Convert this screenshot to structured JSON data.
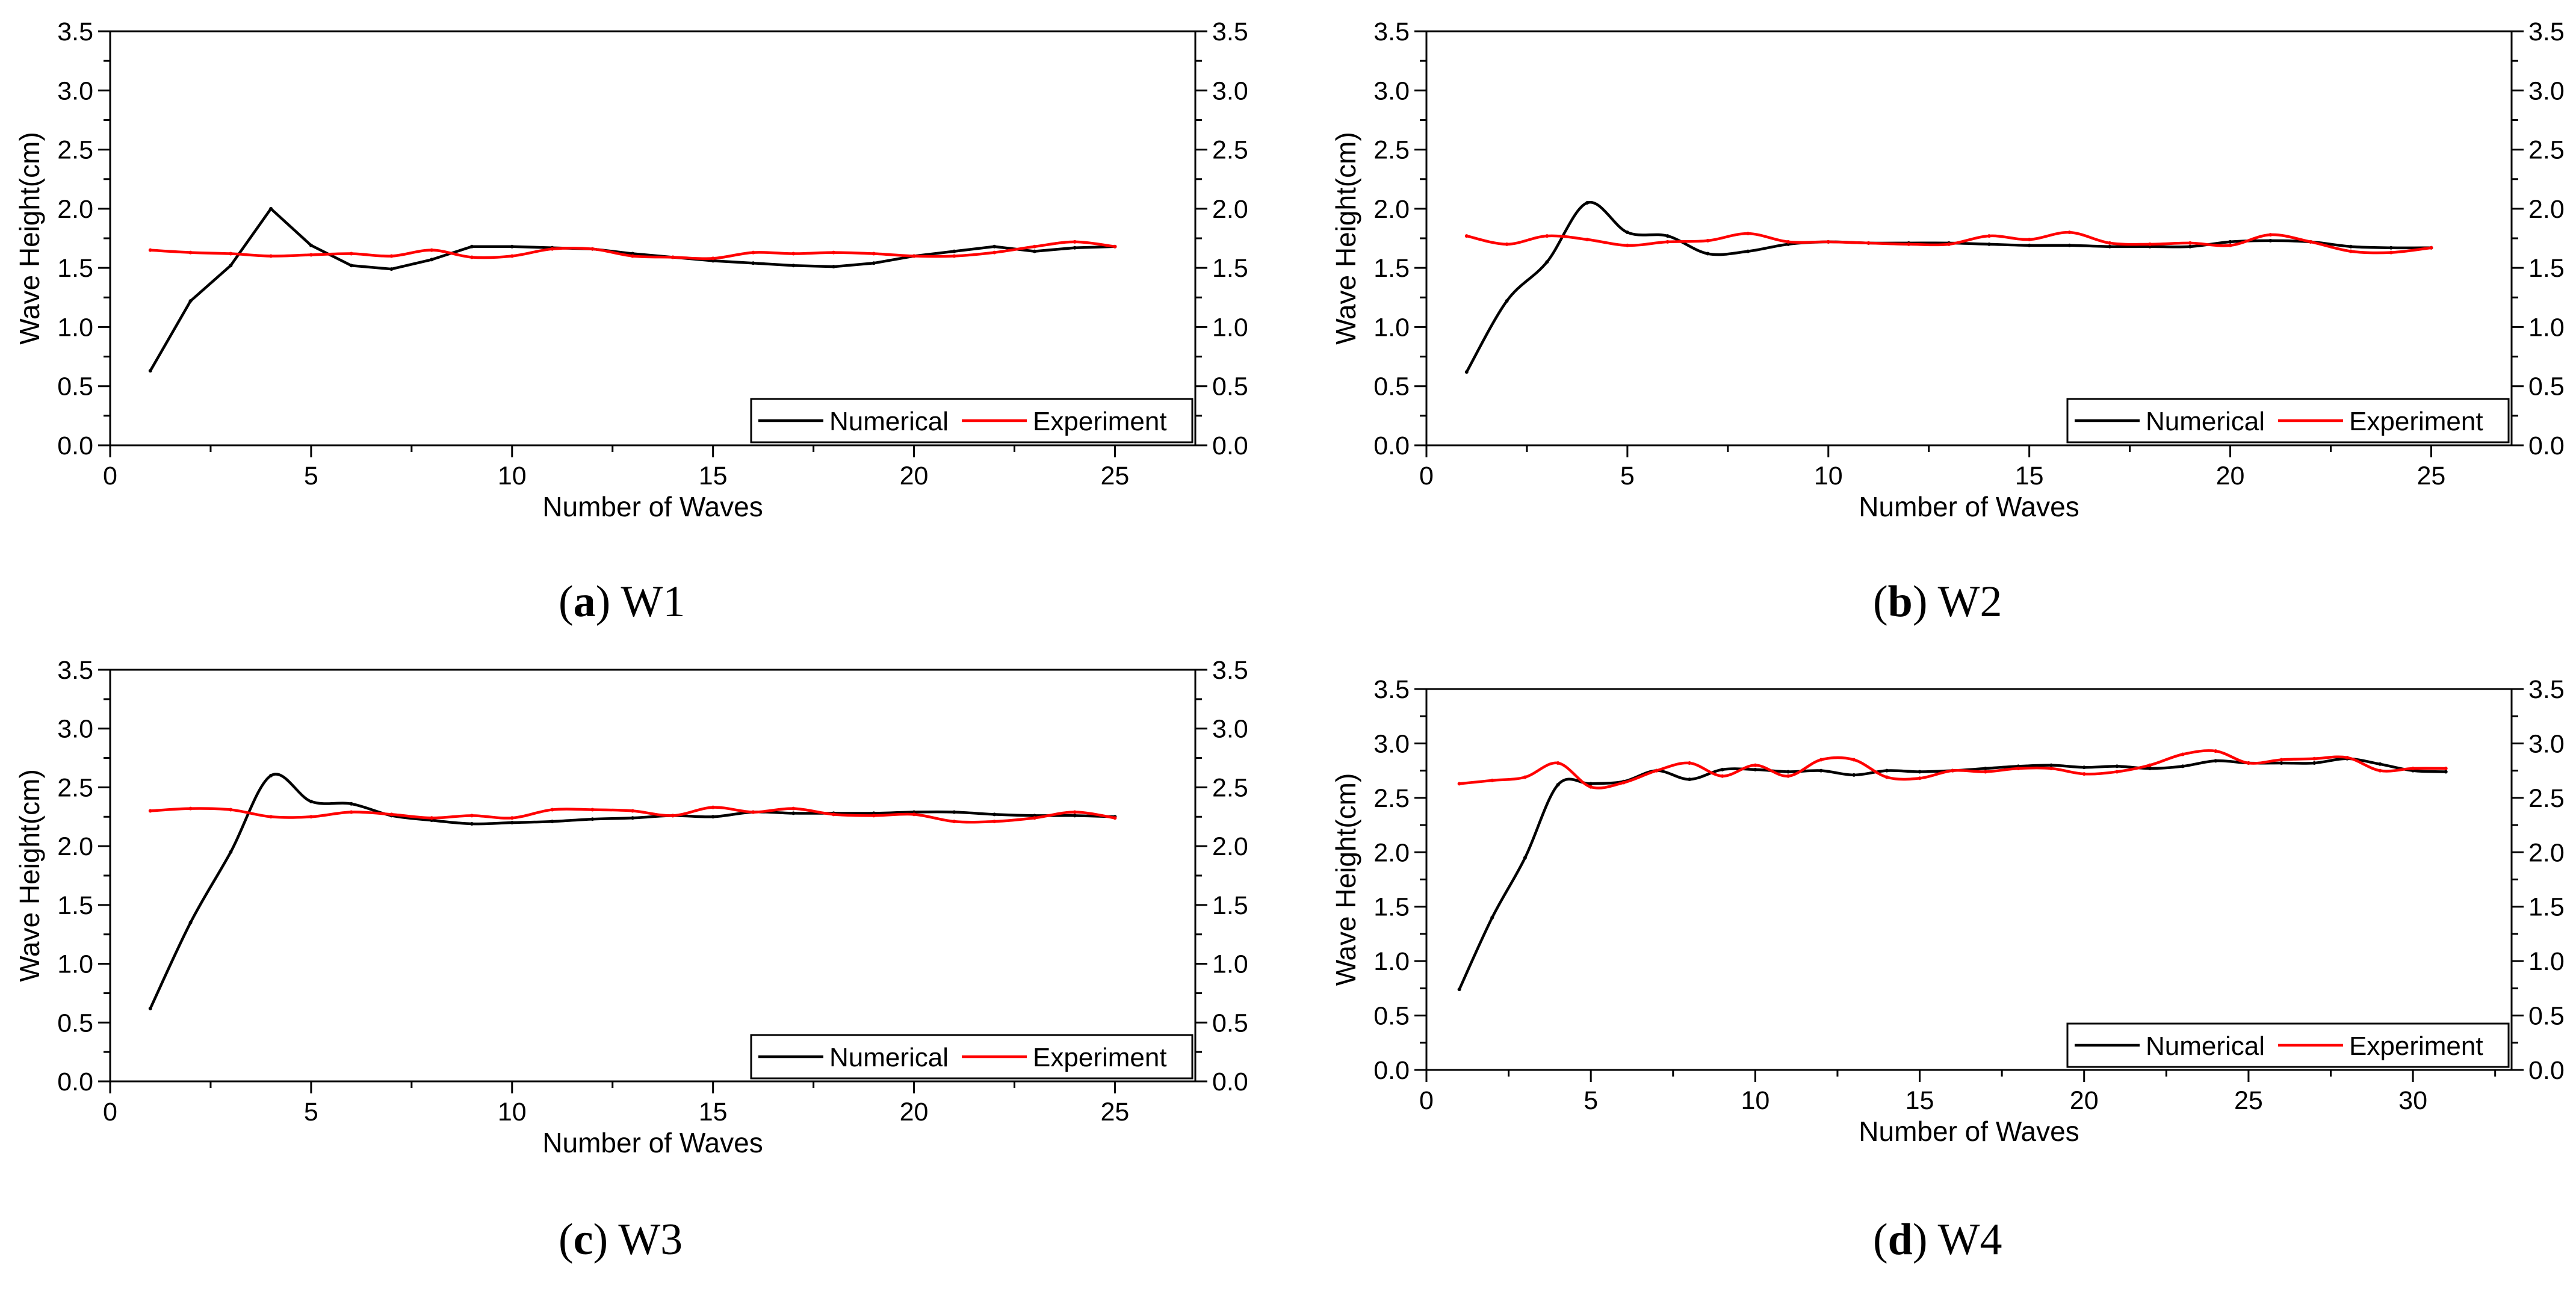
{
  "figure": {
    "captions": [
      {
        "letter": "a",
        "label": "W1"
      },
      {
        "letter": "b",
        "label": "W2"
      },
      {
        "letter": "c",
        "label": "W3"
      },
      {
        "letter": "d",
        "label": "W4"
      }
    ]
  },
  "chart_data": [
    {
      "type": "line",
      "panel": "a",
      "title": "",
      "xlabel": "Number of Waves",
      "ylabel": "Wave Height(cm)",
      "xlim": [
        0,
        27
      ],
      "ylim": [
        0,
        3.5
      ],
      "xticks": [
        0,
        5,
        10,
        15,
        20,
        25
      ],
      "yticks": [
        0.0,
        0.5,
        1.0,
        1.5,
        2.0,
        2.5,
        3.0,
        3.5
      ],
      "legend_position": "bottom-right",
      "series": [
        {
          "name": "Numerical",
          "color": "#000000",
          "smooth": false,
          "x": [
            1,
            2,
            3,
            4,
            5,
            6,
            7,
            8,
            9,
            10,
            11,
            12,
            13,
            14,
            15,
            16,
            17,
            18,
            19,
            20,
            21,
            22,
            23,
            24,
            25
          ],
          "y": [
            0.63,
            1.22,
            1.52,
            2.0,
            1.69,
            1.52,
            1.49,
            1.57,
            1.68,
            1.68,
            1.67,
            1.66,
            1.62,
            1.59,
            1.56,
            1.54,
            1.52,
            1.51,
            1.54,
            1.6,
            1.64,
            1.68,
            1.64,
            1.67,
            1.68
          ]
        },
        {
          "name": "Experiment",
          "color": "#ff0000",
          "smooth": true,
          "x": [
            1,
            2,
            3,
            4,
            5,
            6,
            7,
            8,
            9,
            10,
            11,
            12,
            13,
            14,
            15,
            16,
            17,
            18,
            19,
            20,
            21,
            22,
            23,
            24,
            25
          ],
          "y": [
            1.65,
            1.63,
            1.62,
            1.6,
            1.61,
            1.62,
            1.6,
            1.65,
            1.59,
            1.6,
            1.66,
            1.66,
            1.6,
            1.59,
            1.58,
            1.63,
            1.62,
            1.63,
            1.62,
            1.6,
            1.6,
            1.63,
            1.68,
            1.72,
            1.68
          ]
        }
      ]
    },
    {
      "type": "line",
      "panel": "b",
      "title": "",
      "xlabel": "Number of Waves",
      "ylabel": "Wave Height(cm)",
      "xlim": [
        0,
        27
      ],
      "ylim": [
        0,
        3.5
      ],
      "xticks": [
        0,
        5,
        10,
        15,
        20,
        25
      ],
      "yticks": [
        0.0,
        0.5,
        1.0,
        1.5,
        2.0,
        2.5,
        3.0,
        3.5
      ],
      "legend_position": "bottom-right",
      "series": [
        {
          "name": "Numerical",
          "color": "#000000",
          "smooth": true,
          "x": [
            1,
            2,
            3,
            4,
            5,
            6,
            7,
            8,
            9,
            10,
            11,
            12,
            13,
            14,
            15,
            16,
            17,
            18,
            19,
            20,
            21,
            22,
            23,
            24,
            25
          ],
          "y": [
            0.62,
            1.22,
            1.55,
            2.05,
            1.8,
            1.77,
            1.62,
            1.64,
            1.7,
            1.72,
            1.71,
            1.71,
            1.71,
            1.7,
            1.69,
            1.69,
            1.68,
            1.68,
            1.68,
            1.72,
            1.73,
            1.72,
            1.68,
            1.67,
            1.67
          ]
        },
        {
          "name": "Experiment",
          "color": "#ff0000",
          "smooth": true,
          "x": [
            1,
            2,
            3,
            4,
            5,
            6,
            7,
            8,
            9,
            10,
            11,
            12,
            13,
            14,
            15,
            16,
            17,
            18,
            19,
            20,
            21,
            22,
            23,
            24,
            25
          ],
          "y": [
            1.77,
            1.7,
            1.77,
            1.74,
            1.69,
            1.72,
            1.73,
            1.79,
            1.72,
            1.72,
            1.71,
            1.7,
            1.7,
            1.77,
            1.74,
            1.8,
            1.71,
            1.7,
            1.71,
            1.69,
            1.78,
            1.72,
            1.64,
            1.63,
            1.67
          ]
        }
      ]
    },
    {
      "type": "line",
      "panel": "c",
      "title": "",
      "xlabel": "Number of Waves",
      "ylabel": "Wave Height(cm)",
      "xlim": [
        0,
        27
      ],
      "ylim": [
        0,
        3.5
      ],
      "xticks": [
        0,
        5,
        10,
        15,
        20,
        25
      ],
      "yticks": [
        0.0,
        0.5,
        1.0,
        1.5,
        2.0,
        2.5,
        3.0,
        3.5
      ],
      "legend_position": "bottom-right",
      "series": [
        {
          "name": "Numerical",
          "color": "#000000",
          "smooth": true,
          "x": [
            1,
            2,
            3,
            4,
            5,
            6,
            7,
            8,
            9,
            10,
            11,
            12,
            13,
            14,
            15,
            16,
            17,
            18,
            19,
            20,
            21,
            22,
            23,
            24,
            25
          ],
          "y": [
            0.62,
            1.35,
            1.95,
            2.6,
            2.38,
            2.36,
            2.26,
            2.22,
            2.19,
            2.2,
            2.21,
            2.23,
            2.24,
            2.26,
            2.25,
            2.29,
            2.28,
            2.28,
            2.28,
            2.29,
            2.29,
            2.27,
            2.26,
            2.26,
            2.25
          ]
        },
        {
          "name": "Experiment",
          "color": "#ff0000",
          "smooth": true,
          "x": [
            1,
            2,
            3,
            4,
            5,
            6,
            7,
            8,
            9,
            10,
            11,
            12,
            13,
            14,
            15,
            16,
            17,
            18,
            19,
            20,
            21,
            22,
            23,
            24,
            25
          ],
          "y": [
            2.3,
            2.32,
            2.31,
            2.25,
            2.25,
            2.29,
            2.27,
            2.24,
            2.26,
            2.24,
            2.31,
            2.31,
            2.3,
            2.26,
            2.33,
            2.29,
            2.32,
            2.27,
            2.26,
            2.27,
            2.21,
            2.21,
            2.24,
            2.29,
            2.24
          ]
        }
      ]
    },
    {
      "type": "line",
      "panel": "d",
      "title": "",
      "xlabel": "Number of Waves",
      "ylabel": "Wave Height(cm)",
      "xlim": [
        0,
        33
      ],
      "ylim": [
        0,
        3.5
      ],
      "xticks": [
        0,
        5,
        10,
        15,
        20,
        25,
        30
      ],
      "yticks": [
        0.0,
        0.5,
        1.0,
        1.5,
        2.0,
        2.5,
        3.0,
        3.5
      ],
      "legend_position": "bottom-right",
      "series": [
        {
          "name": "Numerical",
          "color": "#000000",
          "smooth": true,
          "x": [
            1,
            2,
            3,
            4,
            5,
            6,
            7,
            8,
            9,
            10,
            11,
            12,
            13,
            14,
            15,
            16,
            17,
            18,
            19,
            20,
            21,
            22,
            23,
            24,
            25,
            26,
            27,
            28,
            29,
            30,
            31
          ],
          "y": [
            0.74,
            1.4,
            1.95,
            2.62,
            2.63,
            2.65,
            2.75,
            2.67,
            2.76,
            2.76,
            2.74,
            2.75,
            2.71,
            2.75,
            2.74,
            2.75,
            2.77,
            2.79,
            2.8,
            2.78,
            2.79,
            2.77,
            2.79,
            2.84,
            2.82,
            2.82,
            2.82,
            2.86,
            2.81,
            2.75,
            2.74
          ]
        },
        {
          "name": "Experiment",
          "color": "#ff0000",
          "smooth": true,
          "x": [
            1,
            2,
            3,
            4,
            5,
            6,
            7,
            8,
            9,
            10,
            11,
            12,
            13,
            14,
            15,
            16,
            17,
            18,
            19,
            20,
            21,
            22,
            23,
            24,
            25,
            26,
            27,
            28,
            29,
            30,
            31
          ],
          "y": [
            2.63,
            2.66,
            2.69,
            2.82,
            2.6,
            2.64,
            2.75,
            2.82,
            2.7,
            2.8,
            2.7,
            2.85,
            2.85,
            2.69,
            2.68,
            2.75,
            2.74,
            2.77,
            2.77,
            2.72,
            2.74,
            2.8,
            2.9,
            2.93,
            2.82,
            2.85,
            2.86,
            2.87,
            2.75,
            2.77,
            2.77
          ]
        }
      ]
    }
  ]
}
